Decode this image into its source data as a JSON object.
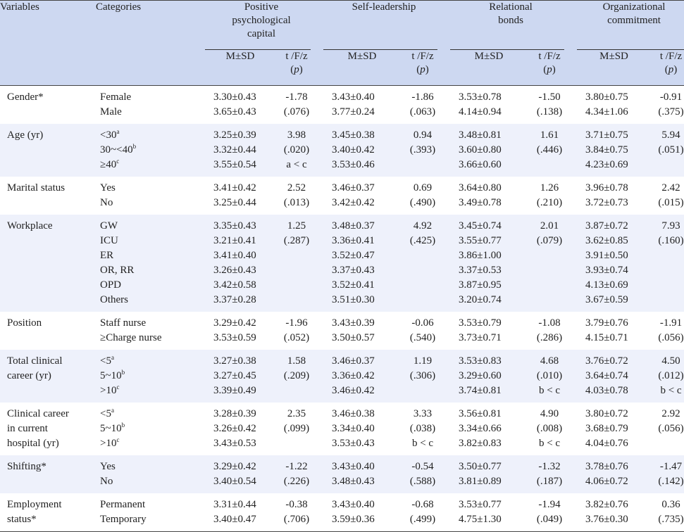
{
  "header": {
    "variables": "Variables",
    "categories": "Categories",
    "groups": [
      "Positive psychological capital",
      "Self-leadership",
      "Relational bonds",
      "Organizational commitment"
    ],
    "group_lines": [
      [
        "Positive",
        "psychological",
        "capital"
      ],
      [
        "Self-leadership"
      ],
      [
        "Relational",
        "bonds"
      ],
      [
        "Organizational",
        "commitment"
      ]
    ],
    "msd": "M±SD",
    "stat_top": "t /F/z",
    "stat_bottom_open": "(",
    "stat_p": "p",
    "stat_bottom_close": ")"
  },
  "rows": [
    {
      "variable": [
        "Gender*"
      ],
      "categories": [
        [
          "Female",
          ""
        ],
        [
          "Male",
          ""
        ]
      ],
      "cols": [
        {
          "msd": [
            "3.30±0.43",
            "3.65±0.43"
          ],
          "stat": [
            "-1.78",
            "(.076)"
          ]
        },
        {
          "msd": [
            "3.43±0.40",
            "3.77±0.24"
          ],
          "stat": [
            "-1.86",
            "(.063)"
          ]
        },
        {
          "msd": [
            "3.53±0.78",
            "4.14±0.94"
          ],
          "stat": [
            "-1.50",
            "(.138)"
          ]
        },
        {
          "msd": [
            "3.80±0.75",
            "4.34±1.06"
          ],
          "stat": [
            "-0.91",
            "(.375)"
          ]
        }
      ]
    },
    {
      "variable": [
        "Age (yr)"
      ],
      "categories": [
        [
          "<30",
          "a"
        ],
        [
          "30~<40",
          "b"
        ],
        [
          "≥40",
          "c"
        ]
      ],
      "cols": [
        {
          "msd": [
            "3.25±0.39",
            "3.32±0.44",
            "3.55±0.54"
          ],
          "stat": [
            "3.98",
            "(.020)",
            "a < c"
          ]
        },
        {
          "msd": [
            "3.45±0.38",
            "3.40±0.42",
            "3.53±0.46"
          ],
          "stat": [
            "0.94",
            "(.393)"
          ]
        },
        {
          "msd": [
            "3.48±0.81",
            "3.60±0.80",
            "3.66±0.60"
          ],
          "stat": [
            "1.61",
            "(.446)"
          ]
        },
        {
          "msd": [
            "3.71±0.75",
            "3.84±0.75",
            "4.23±0.69"
          ],
          "stat": [
            "5.94",
            "(.051)"
          ]
        }
      ]
    },
    {
      "variable": [
        "Marital status"
      ],
      "categories": [
        [
          "Yes",
          ""
        ],
        [
          "No",
          ""
        ]
      ],
      "cols": [
        {
          "msd": [
            "3.41±0.42",
            "3.25±0.44"
          ],
          "stat": [
            "2.52",
            "(.013)"
          ]
        },
        {
          "msd": [
            "3.46±0.37",
            "3.42±0.42"
          ],
          "stat": [
            "0.69",
            "(.490)"
          ]
        },
        {
          "msd": [
            "3.64±0.80",
            "3.49±0.78"
          ],
          "stat": [
            "1.26",
            "(.210)"
          ]
        },
        {
          "msd": [
            "3.96±0.78",
            "3.72±0.73"
          ],
          "stat": [
            "2.42",
            "(.015)"
          ]
        }
      ]
    },
    {
      "variable": [
        "Workplace"
      ],
      "categories": [
        [
          "GW",
          ""
        ],
        [
          "ICU",
          ""
        ],
        [
          "ER",
          ""
        ],
        [
          "OR, RR",
          ""
        ],
        [
          "OPD",
          ""
        ],
        [
          "Others",
          ""
        ]
      ],
      "cols": [
        {
          "msd": [
            "3.35±0.43",
            "3.21±0.41",
            "3.41±0.40",
            "3.26±0.43",
            "3.42±0.58",
            "3.37±0.28"
          ],
          "stat": [
            "1.25",
            "(.287)"
          ]
        },
        {
          "msd": [
            "3.48±0.37",
            "3.36±0.41",
            "3.52±0.47",
            "3.37±0.43",
            "3.52±0.41",
            "3.51±0.30"
          ],
          "stat": [
            "4.92",
            "(.425)"
          ]
        },
        {
          "msd": [
            "3.45±0.74",
            "3.55±0.77",
            "3.86±1.00",
            "3.37±0.53",
            "3.87±0.95",
            "3.20±0.74"
          ],
          "stat": [
            "2.01",
            "(.079)"
          ]
        },
        {
          "msd": [
            "3.87±0.72",
            "3.62±0.85",
            "3.91±0.50",
            "3.93±0.74",
            "4.13±0.69",
            "3.67±0.59"
          ],
          "stat": [
            "7.93",
            "(.160)"
          ]
        }
      ]
    },
    {
      "variable": [
        "Position"
      ],
      "categories": [
        [
          "Staff nurse",
          ""
        ],
        [
          "≥Charge nurse",
          ""
        ]
      ],
      "cols": [
        {
          "msd": [
            "3.29±0.42",
            "3.53±0.59"
          ],
          "stat": [
            "-1.96",
            "(.052)"
          ]
        },
        {
          "msd": [
            "3.43±0.39",
            "3.50±0.57"
          ],
          "stat": [
            "-0.06",
            "(.540)"
          ]
        },
        {
          "msd": [
            "3.53±0.79",
            "3.73±0.71"
          ],
          "stat": [
            "-1.08",
            "(.286)"
          ]
        },
        {
          "msd": [
            "3.79±0.76",
            "4.15±0.71"
          ],
          "stat": [
            "-1.91",
            "(.056)"
          ]
        }
      ]
    },
    {
      "variable": [
        "Total clinical",
        "career (yr)"
      ],
      "categories": [
        [
          "<5",
          "a"
        ],
        [
          "5~10",
          "b"
        ],
        [
          ">10",
          "c"
        ]
      ],
      "cols": [
        {
          "msd": [
            "3.27±0.38",
            "3.27±0.45",
            "3.39±0.49"
          ],
          "stat": [
            "1.58",
            "(.209)"
          ]
        },
        {
          "msd": [
            "3.46±0.37",
            "3.36±0.42",
            "3.46±0.42"
          ],
          "stat": [
            "1.19",
            "(.306)"
          ]
        },
        {
          "msd": [
            "3.53±0.83",
            "3.29±0.60",
            "3.74±0.81"
          ],
          "stat": [
            "4.68",
            "(.010)",
            "b < c"
          ]
        },
        {
          "msd": [
            "3.76±0.72",
            "3.64±0.74",
            "4.03±0.78"
          ],
          "stat": [
            "4.50",
            "(.012)",
            "b < c"
          ]
        }
      ]
    },
    {
      "variable": [
        "Clinical career",
        "in current",
        "hospital (yr)"
      ],
      "categories": [
        [
          "<5",
          "a"
        ],
        [
          "5~10",
          "b"
        ],
        [
          ">10",
          "c"
        ]
      ],
      "cols": [
        {
          "msd": [
            "3.28±0.39",
            "3.26±0.42",
            "3.43±0.53"
          ],
          "stat": [
            "2.35",
            "(.099)"
          ]
        },
        {
          "msd": [
            "3.46±0.38",
            "3.34±0.40",
            "3.53±0.43"
          ],
          "stat": [
            "3.33",
            "(.038)",
            "b < c"
          ]
        },
        {
          "msd": [
            "3.56±0.81",
            "3.34±0.66",
            "3.82±0.83"
          ],
          "stat": [
            "4.90",
            "(.008)",
            "b < c"
          ]
        },
        {
          "msd": [
            "3.80±0.72",
            "3.68±0.79",
            "4.04±0.76"
          ],
          "stat": [
            "2.92",
            "(.056)"
          ]
        }
      ]
    },
    {
      "variable": [
        "Shifting*"
      ],
      "categories": [
        [
          "Yes",
          ""
        ],
        [
          "No",
          ""
        ]
      ],
      "cols": [
        {
          "msd": [
            "3.29±0.42",
            "3.40±0.54"
          ],
          "stat": [
            "-1.22",
            "(.226)"
          ]
        },
        {
          "msd": [
            "3.43±0.40",
            "3.48±0.43"
          ],
          "stat": [
            "-0.54",
            "(.588)"
          ]
        },
        {
          "msd": [
            "3.50±0.77",
            "3.81±0.89"
          ],
          "stat": [
            "-1.32",
            "(.187)"
          ]
        },
        {
          "msd": [
            "3.78±0.76",
            "4.06±0.72"
          ],
          "stat": [
            "-1.47",
            "(.142)"
          ]
        }
      ]
    },
    {
      "variable": [
        "Employment",
        "status*"
      ],
      "categories": [
        [
          "Permanent",
          ""
        ],
        [
          "Temporary",
          ""
        ]
      ],
      "cols": [
        {
          "msd": [
            "3.31±0.44",
            "3.40±0.47"
          ],
          "stat": [
            "-0.38",
            "(.706)"
          ]
        },
        {
          "msd": [
            "3.43±0.40",
            "3.59±0.36"
          ],
          "stat": [
            "-0.68",
            "(.499)"
          ]
        },
        {
          "msd": [
            "3.53±0.77",
            "4.75±1.30"
          ],
          "stat": [
            "-1.94",
            "(.049)"
          ]
        },
        {
          "msd": [
            "3.82±0.76",
            "3.76±0.30"
          ],
          "stat": [
            "0.36",
            "(.735)"
          ]
        }
      ]
    }
  ]
}
